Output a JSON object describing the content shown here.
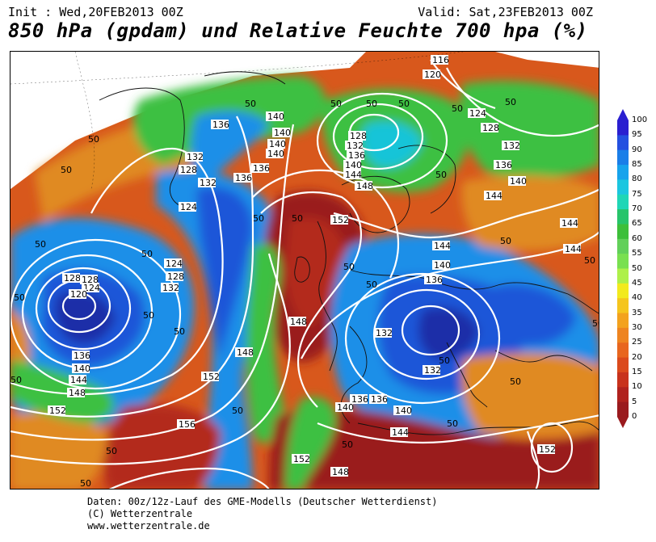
{
  "header": {
    "init": "Init : Wed,20FEB2013 00Z",
    "valid": "Valid: Sat,23FEB2013 00Z",
    "title": "850 hPa (gpdam) und Relative Feuchte 700 hpa (%)"
  },
  "map": {
    "variable_shaded": "Relative Feuchte 700 hpa (%)",
    "variable_contours": "850 hPa (gpdam)",
    "contour_labels": [
      "116",
      "120",
      "124",
      "128",
      "132",
      "136",
      "140",
      "144",
      "148",
      "152",
      "156",
      "50"
    ],
    "colors": {
      "very_dry": "#9a1e1e",
      "dry": "#d8581c",
      "medium_dry": "#f0a020",
      "yellow": "#f2e41e",
      "green": "#3cc043",
      "light_green": "#6fe07a",
      "cyan": "#19c4d8",
      "light_blue": "#1e8fe8",
      "blue": "#1f56d8",
      "dark_blue": "#1a2fa8",
      "contour": "#ffffff",
      "coastline": "#111111"
    }
  },
  "legend": {
    "ticks": [
      "100",
      "95",
      "90",
      "85",
      "80",
      "75",
      "70",
      "65",
      "60",
      "55",
      "50",
      "45",
      "40",
      "35",
      "30",
      "25",
      "20",
      "15",
      "10",
      "5",
      "0"
    ],
    "colors": [
      "#2a1fd0",
      "#2450e0",
      "#1a7ee8",
      "#17a3ec",
      "#1bc6e0",
      "#1fd6b6",
      "#27c46a",
      "#3dbf3a",
      "#62d05a",
      "#79e050",
      "#aef04a",
      "#f2ea1e",
      "#f5c51e",
      "#f3a21e",
      "#ee8420",
      "#e8661e",
      "#db4a1c",
      "#c8321c",
      "#b0221e",
      "#9a1a1e"
    ]
  },
  "footer": {
    "line1": "Daten: 00z/12z-Lauf des GME-Modells (Deutscher Wetterdienst)",
    "line2": "(C) Wetterzentrale",
    "line3": "www.wetterzentrale.de"
  }
}
